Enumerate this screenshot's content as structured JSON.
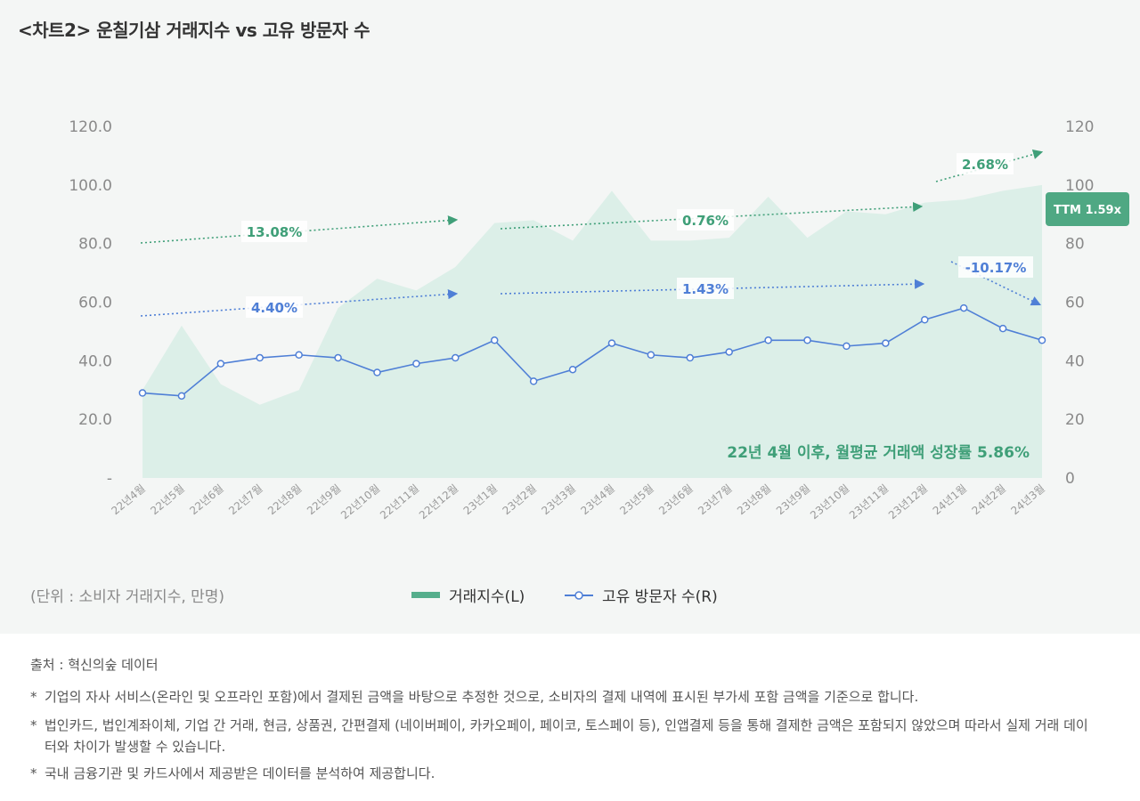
{
  "title": "<차트2>   운칠기삼 거래지수 vs 고유 방문자 수",
  "unit_note": "(단위 : 소비자 거래지수, 만명)",
  "legend": {
    "volume": "거래지수(L)",
    "visitors": "고유 방문자 수(R)"
  },
  "colors": {
    "area_fill": "#dcefe8",
    "area_legend": "#55ae8c",
    "line": "#4f7fd6",
    "green_text": "#3f9f78",
    "ttm_badge": "#4fa883"
  },
  "ttm_badge": "TTM 1.59x",
  "growth_note": "22년 4월 이후, 월평균 거래액 성장률 5.86%",
  "trend_labels": {
    "volume": [
      "13.08%",
      "0.76%",
      "2.68%"
    ],
    "visitors": [
      "4.40%",
      "1.43%",
      "-10.17%"
    ]
  },
  "footer": {
    "source": "출처 : 혁신의숲 데이터",
    "bullet": "*",
    "notes": [
      "기업의 자사 서비스(온라인 및 오프라인 포함)에서 결제된 금액을 바탕으로 추정한 것으로, 소비자의 결제 내역에 표시된 부가세 포함 금액을 기준으로 합니다.",
      "법인카드, 법인계좌이체, 기업 간 거래, 현금, 상품권, 간편결제 (네이버페이, 카카오페이, 페이코, 토스페이 등), 인앱결제 등을 통해 결제한 금액은 포함되지 않았으며 따라서 실제 거래 데이터와 차이가 발생할 수 있습니다.",
      "국내 금융기관 및 카드사에서 제공받은 데이터를 분석하여 제공합니다."
    ]
  },
  "chart_data": {
    "type": "area+line",
    "categories": [
      "22년4월",
      "22년5월",
      "22년6월",
      "22년7월",
      "22년8월",
      "22년9월",
      "22년10월",
      "22년11월",
      "22년12월",
      "23년1월",
      "23년2월",
      "23년3월",
      "23년4월",
      "23년5월",
      "23년6월",
      "23년7월",
      "23년8월",
      "23년9월",
      "23년10월",
      "23년11월",
      "23년12월",
      "24년1월",
      "24년2월",
      "24년3월"
    ],
    "series": [
      {
        "name": "거래지수(L)",
        "axis": "left",
        "kind": "area",
        "values": [
          30,
          52,
          32,
          25,
          30,
          58,
          68,
          64,
          72,
          87,
          88,
          81,
          98,
          81,
          81,
          82,
          96,
          82,
          91,
          90,
          94,
          95,
          98,
          100
        ]
      },
      {
        "name": "고유 방문자 수(R)",
        "axis": "right",
        "kind": "line",
        "values": [
          29,
          28,
          39,
          41,
          42,
          41,
          36,
          39,
          41,
          47,
          33,
          37,
          46,
          42,
          41,
          43,
          47,
          47,
          45,
          46,
          54,
          58,
          51,
          47
        ]
      }
    ],
    "y_left": {
      "lim": [
        0,
        120
      ],
      "ticks": [
        "-",
        "20.0",
        "40.0",
        "60.0",
        "80.0",
        "100.0",
        "120.0"
      ]
    },
    "y_right": {
      "lim": [
        0,
        120
      ],
      "ticks": [
        "0",
        "20",
        "40",
        "60",
        "80",
        "100",
        "120"
      ]
    },
    "grid": false,
    "legend_position": "bottom-center"
  }
}
